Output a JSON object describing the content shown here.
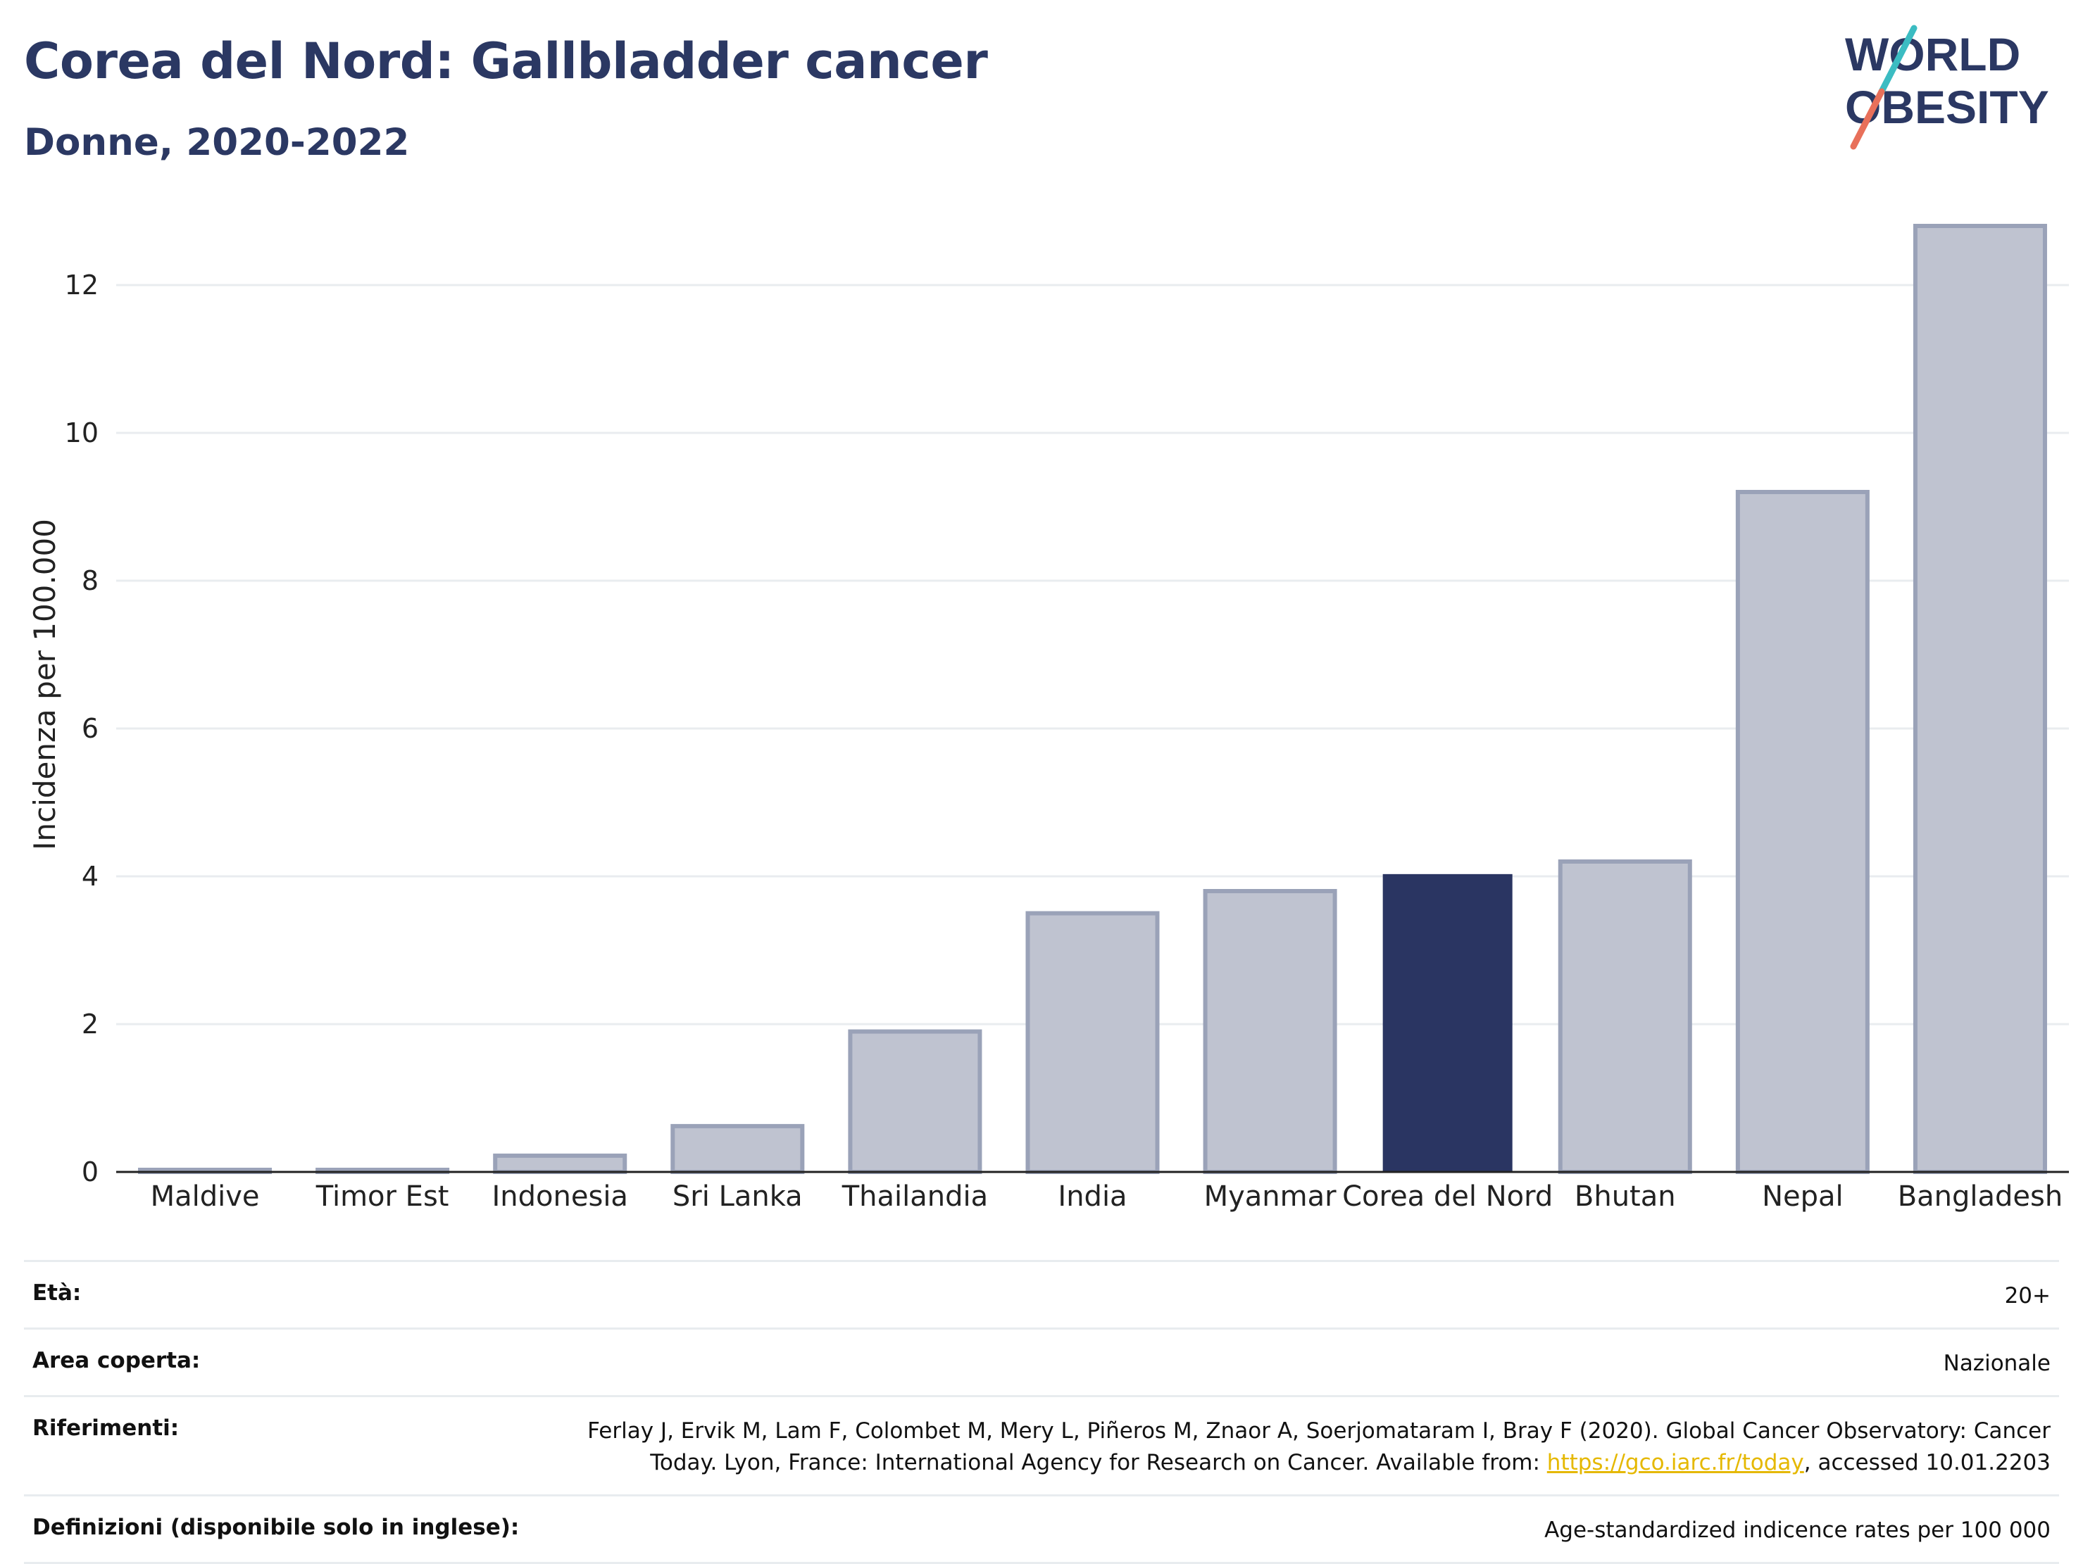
{
  "header": {
    "title": "Corea del Nord: Gallbladder cancer",
    "subtitle": "Donne, 2020-2022"
  },
  "logo": {
    "line1": "WORLD",
    "line2": "OBESITY"
  },
  "colors": {
    "highlight": "#2a3562",
    "bar_fill": "#bfc3d0",
    "bar_stroke": "#9aa2b8",
    "title": "#2b3863",
    "logo_teal": "#3bbcc2",
    "logo_coral": "#e8705a"
  },
  "chart_data": {
    "type": "bar",
    "categories": [
      "Maldive",
      "Timor Est",
      "Indonesia",
      "Sri Lanka",
      "Thailandia",
      "India",
      "Myanmar",
      "Corea del Nord",
      "Bhutan",
      "Nepal",
      "Bangladesh"
    ],
    "values": [
      0.02,
      0.02,
      0.22,
      0.62,
      1.9,
      3.5,
      3.8,
      4.03,
      4.2,
      9.2,
      12.8
    ],
    "highlight": "Corea del Nord",
    "ylabel": "Incidenza per 100.000",
    "xlabel": "",
    "ylim": [
      0,
      13
    ],
    "yticks": [
      0,
      2,
      4,
      6,
      8,
      10,
      12
    ],
    "grid": true
  },
  "info": {
    "age_label": "Età:",
    "age_value": "20+",
    "area_label": "Area coperta:",
    "area_value": "Nazionale",
    "ref_label": "Riferimenti:",
    "ref_text_1": "Ferlay J, Ervik M, Lam F, Colombet M, Mery L, Piñeros M, Znaor A, Soerjomataram I, Bray F (2020). Global Cancer Observatory: Cancer Today. Lyon, France: International Agency for Research on Cancer. Available from: ",
    "ref_link": "https://gco.iarc.fr/today",
    "ref_text_2": ", accessed 10.01.2203",
    "def_label": "Definizioni (disponibile solo in inglese):",
    "def_value": "Age-standardized indicence rates per 100 000"
  }
}
